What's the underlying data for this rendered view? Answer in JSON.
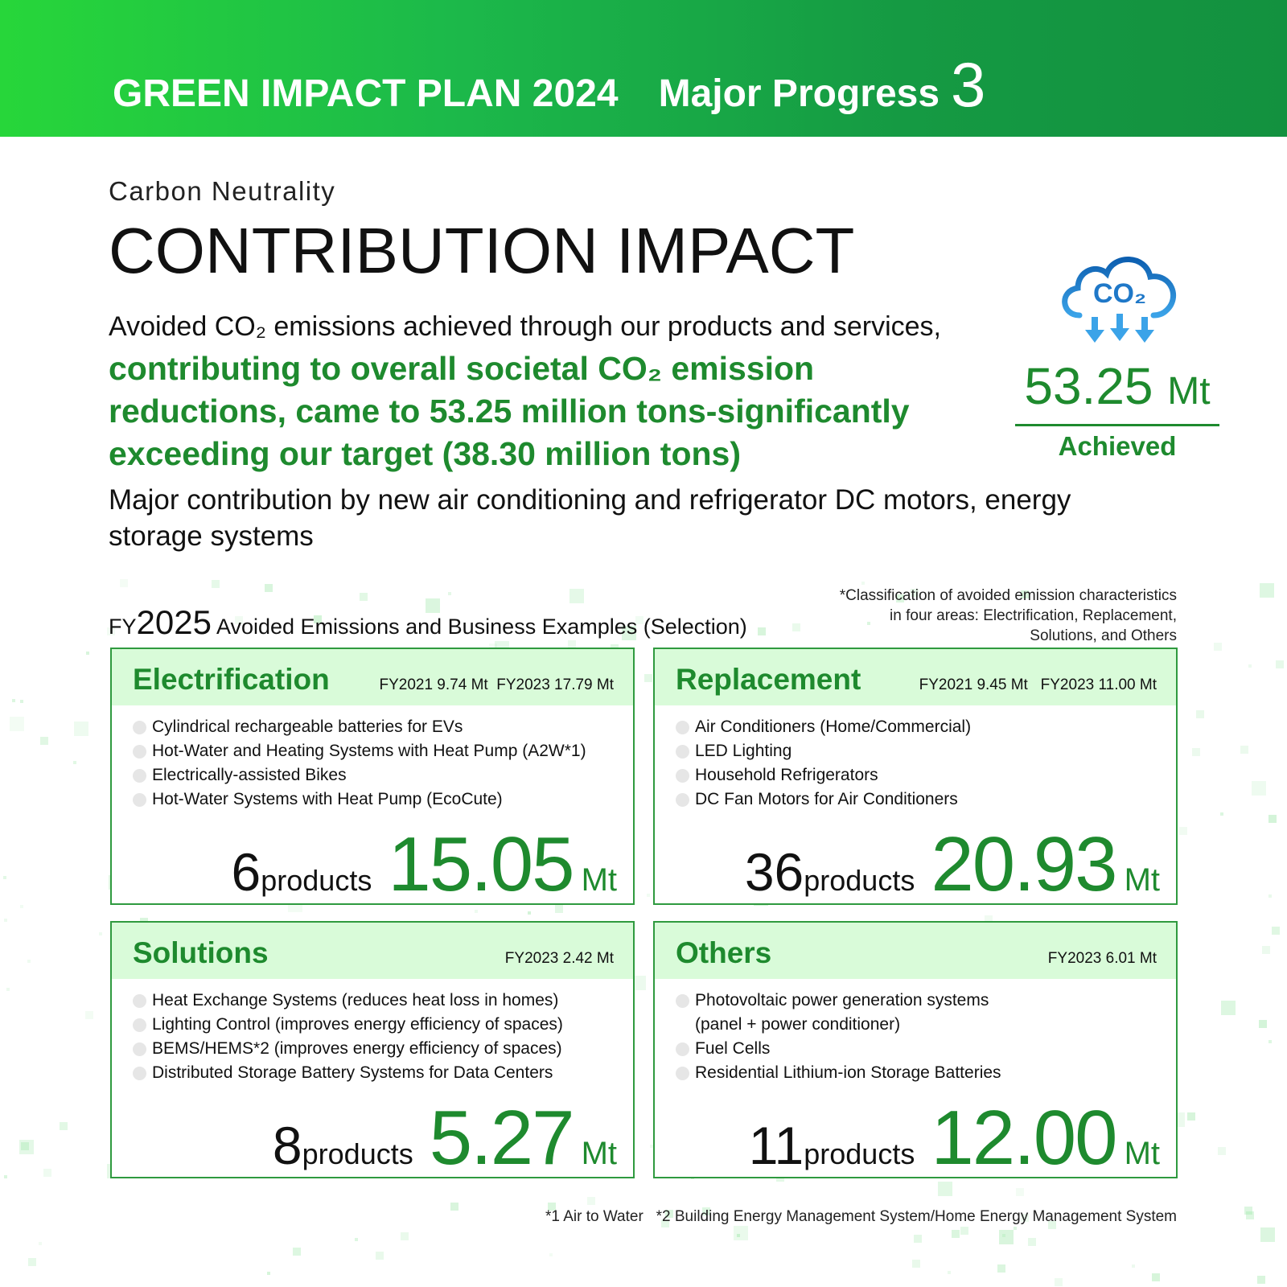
{
  "banner": {
    "plan": "GREEN IMPACT PLAN 2024",
    "progress": "Major Progress",
    "number": "3"
  },
  "subtitle": "Carbon Neutrality",
  "title": "CONTRIBUTION IMPACT",
  "lead": "Avoided CO₂ emissions achieved through our products and services,",
  "highlight": "contributing to overall societal CO₂ emission reductions, came to 53.25 million tons-significantly exceeding our target (38.30 million tons)",
  "major": "Major contribution by new air conditioning and refrigerator DC motors, energy storage systems",
  "achieved": {
    "icon": "co2-cloud-icon",
    "cloud_text": "CO₂",
    "value": "53.25",
    "unit": "Mt",
    "label": "Achieved"
  },
  "section": {
    "prefix": "FY",
    "year": "2025",
    "title": "Avoided Emissions and Business Examples (Selection)"
  },
  "note": [
    "*Classification of avoided emission characteristics",
    "in four areas: Electrification, Replacement,",
    "Solutions, and Others"
  ],
  "cards": [
    {
      "name": "Electrification",
      "fy": "FY2021 9.74 Mt  FY2023 17.79 Mt",
      "items": [
        "Cylindrical rechargeable batteries for EVs",
        "Hot-Water and Heating Systems with Heat Pump (A2W*1)",
        "Electrically-assisted Bikes",
        "Hot-Water Systems with Heat Pump (EcoCute)"
      ],
      "count": "6",
      "products": "products",
      "value": "15.05",
      "unit": "Mt"
    },
    {
      "name": "Replacement",
      "fy": "FY2021 9.45 Mt   FY2023 11.00 Mt",
      "items": [
        "Air Conditioners (Home/Commercial)",
        "LED Lighting",
        "Household Refrigerators",
        "DC Fan Motors for Air Conditioners"
      ],
      "count": "36",
      "products": "products",
      "value": "20.93",
      "unit": "Mt"
    },
    {
      "name": "Solutions",
      "fy": "FY2023 2.42 Mt",
      "items": [
        "Heat Exchange Systems (reduces heat loss in homes)",
        "Lighting Control (improves energy efficiency of spaces)",
        "BEMS/HEMS*2 (improves energy efficiency of spaces)",
        "Distributed Storage Battery Systems for Data Centers"
      ],
      "count": "8",
      "products": "products",
      "value": "5.27",
      "unit": "Mt"
    },
    {
      "name": "Others",
      "fy": "FY2023 6.01 Mt",
      "items": [
        "Photovoltaic power generation systems",
        "(panel + power conditioner)",
        "Fuel Cells",
        "Residential Lithium-ion Storage Batteries"
      ],
      "count": "11",
      "products": "products",
      "value": "12.00",
      "unit": "Mt"
    }
  ],
  "footnote": "*1 Air to Water   *2 Building Energy Management System/Home Energy Management System",
  "colors": {
    "green": "#1e8a2e",
    "banner_start": "#27d63a",
    "banner_end": "#13913f",
    "card_header": "#d9fbd9",
    "cloud": "#1f78c8"
  }
}
